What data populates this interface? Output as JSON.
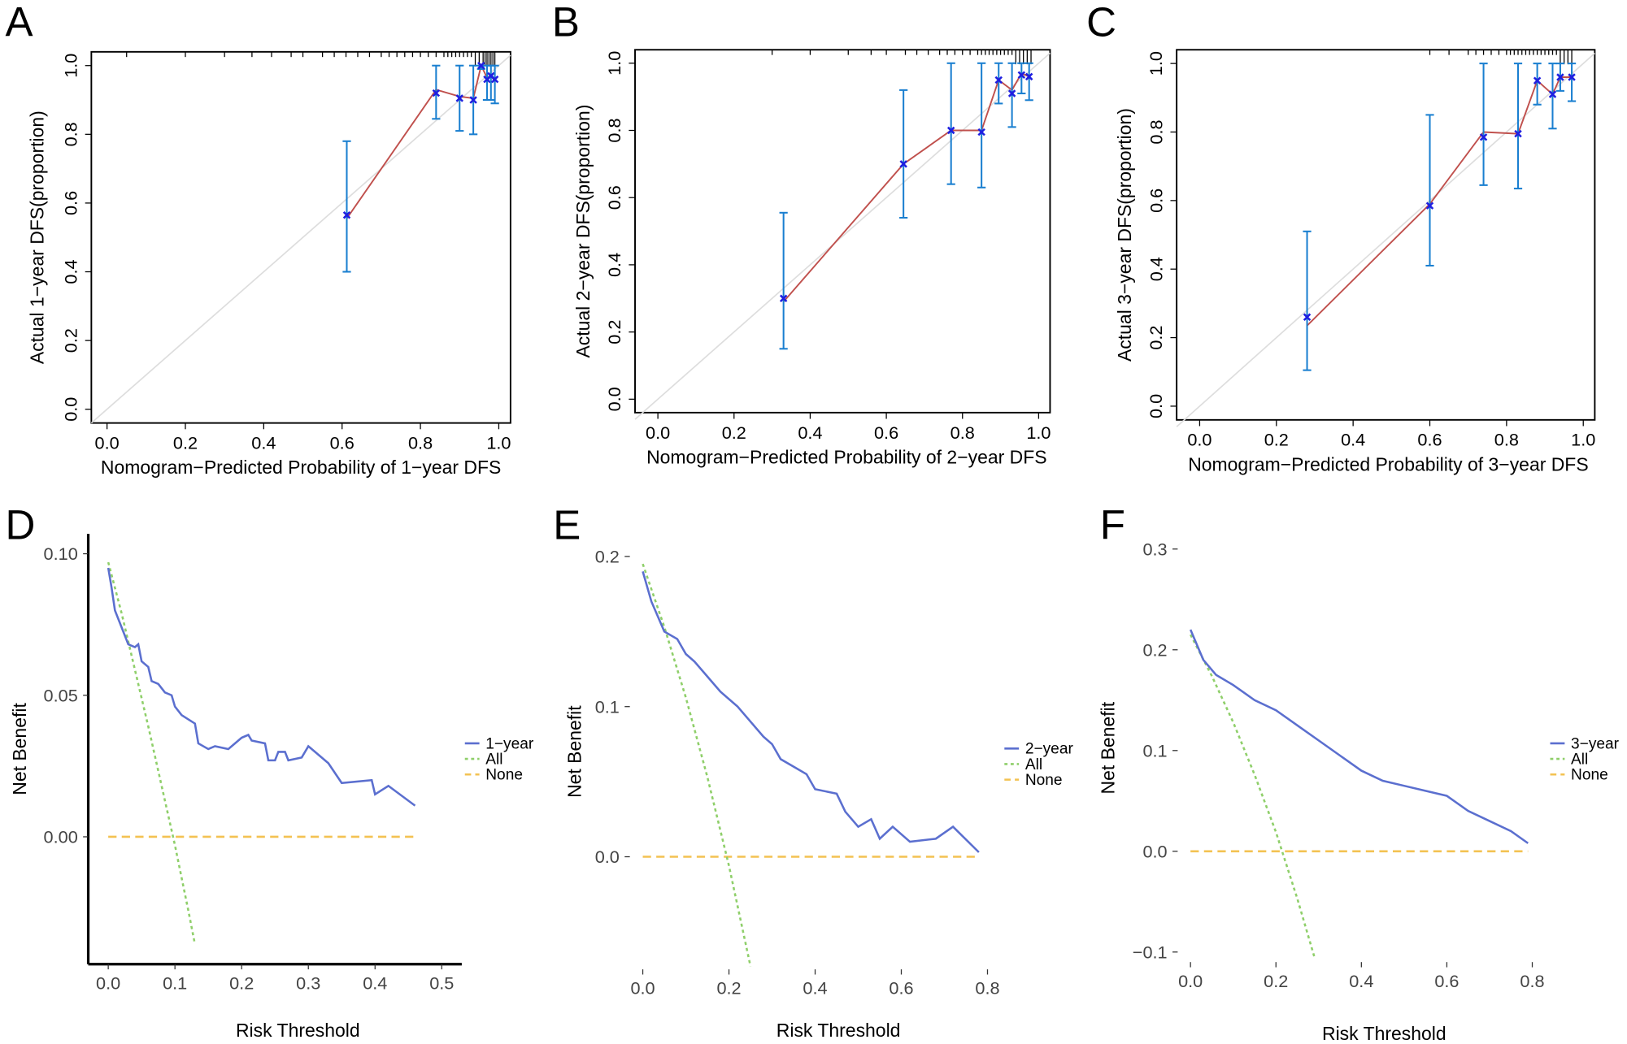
{
  "colors": {
    "ideal": "#dddddd",
    "apparent": "#c0504d",
    "observed": "#1f1fe0",
    "errorbar": "#1a7fd0",
    "model": "#5b6fcf",
    "all": "#8fcf6a",
    "none": "#f3c252"
  },
  "chart_data": [
    {
      "panel": "A",
      "type": "scatter",
      "xlabel": "Nomogram−Predicted Probability of 1−year DFS",
      "ylabel": "Actual 1−year DFS(proportion)",
      "xlim": [
        -0.04,
        1.03
      ],
      "ylim": [
        -0.04,
        1.04
      ],
      "xticks": [
        "0.0",
        "0.2",
        "0.4",
        "0.6",
        "0.8",
        "1.0"
      ],
      "yticks": [
        "0.0",
        "0.2",
        "0.4",
        "0.6",
        "0.8",
        "1.0"
      ],
      "points": [
        [
          0.612,
          0.565,
          0.555,
          0.4,
          0.78
        ],
        [
          0.84,
          0.92,
          0.93,
          0.845,
          1.0
        ],
        [
          0.9,
          0.905,
          0.91,
          0.81,
          1.0
        ],
        [
          0.935,
          0.9,
          0.905,
          0.8,
          1.0
        ],
        [
          0.955,
          1.0,
          1.0,
          0.99,
          1.0
        ],
        [
          0.97,
          0.96,
          0.965,
          0.9,
          1.0
        ],
        [
          0.98,
          0.97,
          0.97,
          0.9,
          1.0
        ],
        [
          0.99,
          0.96,
          0.955,
          0.89,
          1.0
        ]
      ],
      "rug": [
        0.05,
        0.2,
        0.3,
        0.37,
        0.42,
        0.47,
        0.5,
        0.55,
        0.58,
        0.61,
        0.64,
        0.67,
        0.7,
        0.72,
        0.74,
        0.76,
        0.78,
        0.8,
        0.82,
        0.84,
        0.86,
        0.87,
        0.88,
        0.89,
        0.9,
        0.91,
        0.92,
        0.93,
        0.94,
        0.95,
        0.96,
        0.965,
        0.97,
        0.975,
        0.98,
        0.985,
        0.99
      ]
    },
    {
      "panel": "B",
      "type": "scatter",
      "xlabel": "Nomogram−Predicted Probability of 2−year DFS",
      "ylabel": "Actual 2−year DFS(proportion)",
      "xlim": [
        -0.06,
        1.03
      ],
      "ylim": [
        -0.04,
        1.04
      ],
      "xticks": [
        "0.0",
        "0.2",
        "0.4",
        "0.6",
        "0.8",
        "1.0"
      ],
      "yticks": [
        "0.0",
        "0.2",
        "0.4",
        "0.6",
        "0.8",
        "1.0"
      ],
      "points": [
        [
          0.33,
          0.3,
          0.29,
          0.15,
          0.555
        ],
        [
          0.645,
          0.7,
          0.7,
          0.54,
          0.92
        ],
        [
          0.77,
          0.8,
          0.8,
          0.64,
          1.0
        ],
        [
          0.85,
          0.795,
          0.8,
          0.63,
          1.0
        ],
        [
          0.895,
          0.95,
          0.95,
          0.88,
          1.0
        ],
        [
          0.93,
          0.91,
          0.92,
          0.81,
          1.0
        ],
        [
          0.955,
          0.965,
          0.97,
          0.91,
          1.0
        ],
        [
          0.975,
          0.96,
          0.96,
          0.89,
          1.0
        ]
      ],
      "rug": [
        0.3,
        0.4,
        0.5,
        0.56,
        0.6,
        0.65,
        0.68,
        0.71,
        0.74,
        0.76,
        0.78,
        0.8,
        0.82,
        0.84,
        0.85,
        0.86,
        0.87,
        0.88,
        0.89,
        0.9,
        0.91,
        0.92,
        0.93,
        0.94,
        0.95,
        0.96,
        0.97,
        0.98
      ]
    },
    {
      "panel": "C",
      "type": "scatter",
      "xlabel": "Nomogram−Predicted Probability of 3−year DFS",
      "ylabel": "Actual 3−year DFS(proportion)",
      "xlim": [
        -0.06,
        1.03
      ],
      "ylim": [
        -0.04,
        1.04
      ],
      "xticks": [
        "0.0",
        "0.2",
        "0.4",
        "0.6",
        "0.8",
        "1.0"
      ],
      "yticks": [
        "0.0",
        "0.2",
        "0.4",
        "0.6",
        "0.8",
        "1.0"
      ],
      "points": [
        [
          0.28,
          0.26,
          0.235,
          0.105,
          0.51
        ],
        [
          0.6,
          0.585,
          0.59,
          0.41,
          0.85
        ],
        [
          0.74,
          0.785,
          0.8,
          0.645,
          1.0
        ],
        [
          0.83,
          0.795,
          0.795,
          0.635,
          1.0
        ],
        [
          0.88,
          0.95,
          0.95,
          0.88,
          1.0
        ],
        [
          0.92,
          0.91,
          0.91,
          0.81,
          1.0
        ],
        [
          0.94,
          0.96,
          0.96,
          0.92,
          1.0
        ],
        [
          0.97,
          0.96,
          0.96,
          0.89,
          1.0
        ]
      ],
      "rug": [
        0.6,
        0.65,
        0.7,
        0.72,
        0.74,
        0.76,
        0.78,
        0.8,
        0.81,
        0.82,
        0.83,
        0.84,
        0.85,
        0.86,
        0.87,
        0.88,
        0.89,
        0.9,
        0.91,
        0.92,
        0.93,
        0.94,
        0.95,
        0.96,
        0.97
      ]
    },
    {
      "panel": "D",
      "type": "line",
      "xlabel": "Risk Threshold",
      "ylabel": "Net Benefit",
      "xlim": [
        -0.03,
        0.53
      ],
      "ylim": [
        -0.045,
        0.107
      ],
      "xticks": [
        0,
        0.1,
        0.2,
        0.3,
        0.4,
        0.5
      ],
      "xticklabels": [
        "0.0",
        "0.1",
        "0.2",
        "0.3",
        "0.4",
        "0.5"
      ],
      "yticks": [
        0,
        0.05,
        0.1
      ],
      "yticklabels": [
        "0.00",
        "0.05",
        "0.10"
      ],
      "legend": [
        "1−year",
        "All",
        "None"
      ],
      "model": [
        [
          0,
          0.095
        ],
        [
          0.005,
          0.088
        ],
        [
          0.01,
          0.08
        ],
        [
          0.02,
          0.074
        ],
        [
          0.03,
          0.068
        ],
        [
          0.04,
          0.067
        ],
        [
          0.045,
          0.068
        ],
        [
          0.05,
          0.062
        ],
        [
          0.06,
          0.06
        ],
        [
          0.065,
          0.055
        ],
        [
          0.075,
          0.054
        ],
        [
          0.085,
          0.051
        ],
        [
          0.095,
          0.05
        ],
        [
          0.1,
          0.046
        ],
        [
          0.11,
          0.043
        ],
        [
          0.13,
          0.04
        ],
        [
          0.135,
          0.033
        ],
        [
          0.15,
          0.031
        ],
        [
          0.16,
          0.032
        ],
        [
          0.18,
          0.031
        ],
        [
          0.19,
          0.033
        ],
        [
          0.2,
          0.035
        ],
        [
          0.21,
          0.036
        ],
        [
          0.215,
          0.034
        ],
        [
          0.235,
          0.033
        ],
        [
          0.24,
          0.027
        ],
        [
          0.25,
          0.027
        ],
        [
          0.255,
          0.03
        ],
        [
          0.265,
          0.03
        ],
        [
          0.27,
          0.027
        ],
        [
          0.29,
          0.028
        ],
        [
          0.3,
          0.032
        ],
        [
          0.33,
          0.026
        ],
        [
          0.35,
          0.019
        ],
        [
          0.395,
          0.02
        ],
        [
          0.4,
          0.015
        ],
        [
          0.42,
          0.018
        ],
        [
          0.46,
          0.011
        ]
      ],
      "all": [
        [
          0,
          0.097
        ],
        [
          0.02,
          0.079
        ],
        [
          0.04,
          0.059
        ],
        [
          0.06,
          0.039
        ],
        [
          0.08,
          0.018
        ],
        [
          0.1,
          -0.003
        ],
        [
          0.12,
          -0.026
        ],
        [
          0.13,
          -0.038
        ]
      ],
      "none": [
        [
          0,
          0
        ],
        [
          0.46,
          0
        ]
      ]
    },
    {
      "panel": "E",
      "type": "line",
      "xlabel": "Risk Threshold",
      "ylabel": "Net Benefit",
      "xlim": [
        -0.03,
        0.82
      ],
      "ylim": [
        -0.075,
        0.215
      ],
      "xticks": [
        0,
        0.2,
        0.4,
        0.6,
        0.8
      ],
      "xticklabels": [
        "0.0",
        "0.2",
        "0.4",
        "0.6",
        "0.8"
      ],
      "yticks": [
        0,
        0.1,
        0.2
      ],
      "yticklabels": [
        "0.0",
        "0.1",
        "0.2"
      ],
      "legend": [
        "2−year",
        "All",
        "None"
      ],
      "model": [
        [
          0,
          0.19
        ],
        [
          0.02,
          0.17
        ],
        [
          0.05,
          0.15
        ],
        [
          0.08,
          0.145
        ],
        [
          0.1,
          0.135
        ],
        [
          0.12,
          0.13
        ],
        [
          0.15,
          0.12
        ],
        [
          0.18,
          0.11
        ],
        [
          0.22,
          0.1
        ],
        [
          0.25,
          0.09
        ],
        [
          0.28,
          0.08
        ],
        [
          0.3,
          0.075
        ],
        [
          0.32,
          0.065
        ],
        [
          0.35,
          0.06
        ],
        [
          0.38,
          0.055
        ],
        [
          0.4,
          0.045
        ],
        [
          0.45,
          0.042
        ],
        [
          0.47,
          0.03
        ],
        [
          0.5,
          0.02
        ],
        [
          0.53,
          0.025
        ],
        [
          0.55,
          0.012
        ],
        [
          0.58,
          0.02
        ],
        [
          0.62,
          0.01
        ],
        [
          0.68,
          0.012
        ],
        [
          0.72,
          0.02
        ],
        [
          0.78,
          0.003
        ]
      ],
      "all": [
        [
          0,
          0.195
        ],
        [
          0.05,
          0.153
        ],
        [
          0.1,
          0.106
        ],
        [
          0.15,
          0.053
        ],
        [
          0.2,
          -0.006
        ],
        [
          0.25,
          -0.073
        ]
      ],
      "none": [
        [
          0,
          0
        ],
        [
          0.78,
          0
        ]
      ]
    },
    {
      "panel": "F",
      "type": "line",
      "xlabel": "Risk Threshold",
      "ylabel": "Net Benefit",
      "xlim": [
        -0.03,
        0.82
      ],
      "ylim": [
        -0.11,
        0.315
      ],
      "xticks": [
        0,
        0.2,
        0.4,
        0.6,
        0.8
      ],
      "xticklabels": [
        "0.0",
        "0.2",
        "0.4",
        "0.6",
        "0.8"
      ],
      "yticks": [
        -0.1,
        0,
        0.1,
        0.2,
        0.3
      ],
      "yticklabels": [
        "−0.1",
        "0.0",
        "0.1",
        "0.2",
        "0.3"
      ],
      "legend": [
        "3−year",
        "All",
        "None"
      ],
      "model": [
        [
          0,
          0.22
        ],
        [
          0.03,
          0.19
        ],
        [
          0.06,
          0.175
        ],
        [
          0.1,
          0.165
        ],
        [
          0.15,
          0.15
        ],
        [
          0.2,
          0.14
        ],
        [
          0.25,
          0.125
        ],
        [
          0.3,
          0.11
        ],
        [
          0.35,
          0.095
        ],
        [
          0.4,
          0.08
        ],
        [
          0.45,
          0.07
        ],
        [
          0.5,
          0.065
        ],
        [
          0.55,
          0.06
        ],
        [
          0.6,
          0.055
        ],
        [
          0.65,
          0.04
        ],
        [
          0.7,
          0.03
        ],
        [
          0.75,
          0.02
        ],
        [
          0.79,
          0.008
        ]
      ],
      "all": [
        [
          0,
          0.215
        ],
        [
          0.05,
          0.174
        ],
        [
          0.1,
          0.128
        ],
        [
          0.15,
          0.076
        ],
        [
          0.2,
          0.019
        ],
        [
          0.25,
          -0.047
        ],
        [
          0.29,
          -0.105
        ]
      ],
      "none": [
        [
          0,
          0
        ],
        [
          0.79,
          0
        ]
      ]
    }
  ]
}
